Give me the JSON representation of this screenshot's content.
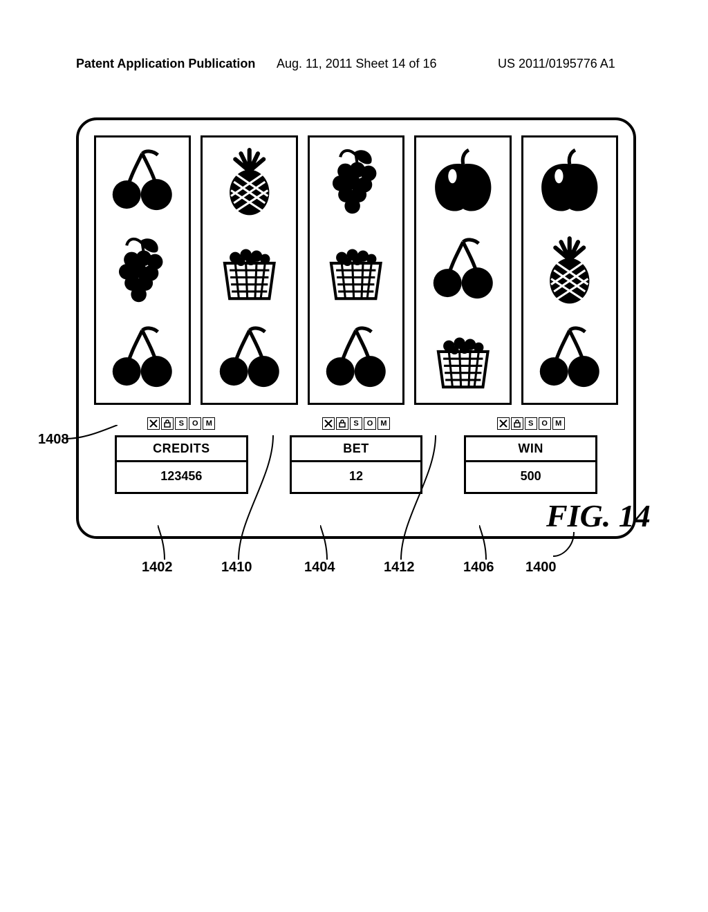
{
  "header": {
    "left": "Patent Application Publication",
    "mid": "Aug. 11, 2011  Sheet 14 of 16",
    "right": "US 2011/0195776 A1"
  },
  "figure_label": "FIG. 14",
  "callouts": {
    "screen": "1400",
    "credits_meter": "1402",
    "bet_meter": "1404",
    "win_meter": "1406",
    "credits_icons": "1408",
    "bet_icons": "1410",
    "win_icons": "1412"
  },
  "meters": [
    {
      "title": "CREDITS",
      "value": "123456"
    },
    {
      "title": "BET",
      "value": "12"
    },
    {
      "title": "WIN",
      "value": "500"
    }
  ],
  "reels": [
    [
      "cherry",
      "grapes",
      "cherry"
    ],
    [
      "pineapple",
      "basket",
      "cherry"
    ],
    [
      "grapes",
      "basket",
      "cherry"
    ],
    [
      "apple",
      "cherry",
      "basket"
    ],
    [
      "apple",
      "pineapple",
      "cherry"
    ]
  ],
  "colors": {
    "stroke": "#000000",
    "bg": "#ffffff"
  }
}
